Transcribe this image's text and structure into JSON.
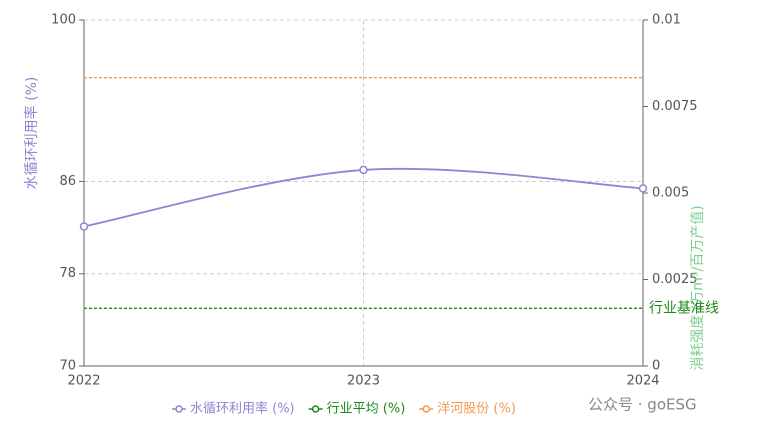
{
  "chart_data": {
    "type": "line",
    "categories": [
      "2022",
      "2023",
      "2024"
    ],
    "y_label": "水循环利用率 (%)",
    "y2_label": "消耗强度 (万m³/百万产值)",
    "ylim": [
      70,
      100
    ],
    "yticks": [
      70,
      78,
      86,
      100
    ],
    "y2lim": [
      0,
      0.01
    ],
    "y2ticks": [
      0,
      0.0025,
      0.005,
      0.0075,
      0.01
    ],
    "grid": true,
    "series": [
      {
        "name": "水循环利用率 (%)",
        "color": "#8b86d2",
        "values": [
          82.1,
          87.0,
          85.4
        ],
        "style": "solid"
      },
      {
        "name": "行业平均 (%)",
        "color": "#1a8a1a",
        "values": [
          75,
          75,
          75
        ],
        "style": "dashed"
      },
      {
        "name": "洋河股份 (%)",
        "color": "#f39a4a",
        "values": [
          95,
          95,
          95
        ],
        "style": "dashed"
      }
    ],
    "annotation": "行业基准线",
    "watermark": "公众号 · goESG"
  }
}
